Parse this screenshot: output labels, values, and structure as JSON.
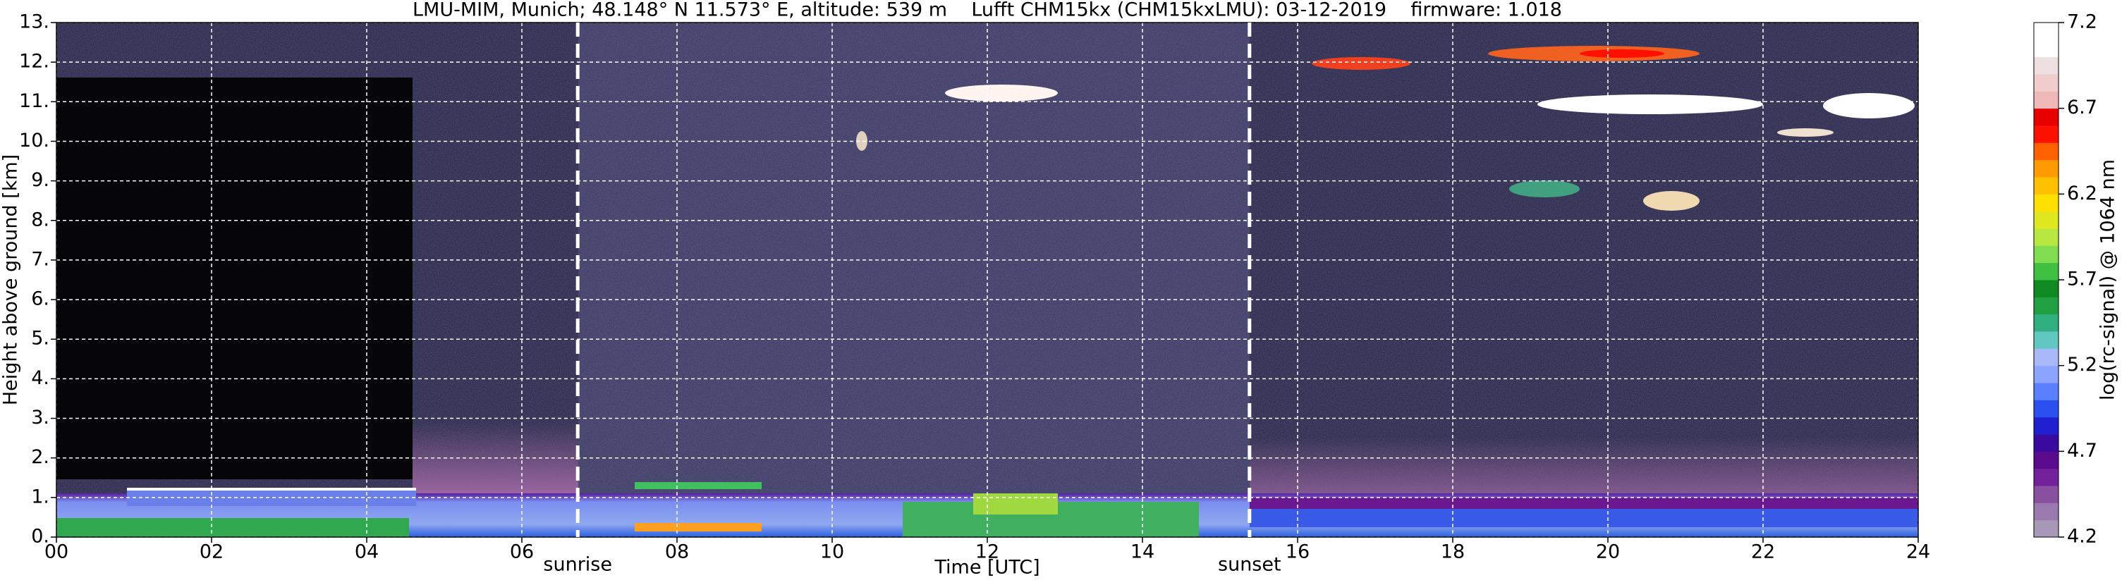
{
  "chart_data": {
    "type": "heatmap",
    "title": "LMU-MIM, Munich; 48.148° N 11.573° E, altitude: 539 m    Lufft CHM15kx (CHM15kxLMU): 03-12-2019    firmware: 1.018",
    "x_label": "Time [UTC]",
    "y_label": "Height above ground [km]",
    "xlim": [
      0,
      24
    ],
    "xticks": [
      {
        "value": 0,
        "label": "00"
      },
      {
        "value": 2,
        "label": "02"
      },
      {
        "value": 4,
        "label": "04"
      },
      {
        "value": 6,
        "label": "06"
      },
      {
        "value": 8,
        "label": "08"
      },
      {
        "value": 10,
        "label": "10"
      },
      {
        "value": 12,
        "label": "12"
      },
      {
        "value": 14,
        "label": "14"
      },
      {
        "value": 16,
        "label": "16"
      },
      {
        "value": 18,
        "label": "18"
      },
      {
        "value": 20,
        "label": "20"
      },
      {
        "value": 22,
        "label": "22"
      },
      {
        "value": 24,
        "label": "24"
      }
    ],
    "ylim": [
      0,
      13
    ],
    "yticks": [
      {
        "value": 0,
        "label": "0."
      },
      {
        "value": 1,
        "label": "1."
      },
      {
        "value": 2,
        "label": "2."
      },
      {
        "value": 3,
        "label": "3."
      },
      {
        "value": 4,
        "label": "4."
      },
      {
        "value": 5,
        "label": "5."
      },
      {
        "value": 6,
        "label": "6."
      },
      {
        "value": 7,
        "label": "7."
      },
      {
        "value": 8,
        "label": "8."
      },
      {
        "value": 9,
        "label": "9."
      },
      {
        "value": 10,
        "label": "10."
      },
      {
        "value": 11,
        "label": "11."
      },
      {
        "value": 12,
        "label": "12."
      },
      {
        "value": 13,
        "label": "13."
      }
    ],
    "grid": true,
    "annotations": [
      {
        "label": "sunrise",
        "x": 6.72
      },
      {
        "label": "sunset",
        "x": 15.38
      }
    ],
    "colorbar": {
      "label": "log(rc-signal) @ 1064 nm",
      "lim": [
        4.2,
        7.2
      ],
      "ticks": [
        4.2,
        4.7,
        5.2,
        5.7,
        6.2,
        6.7,
        7.2
      ],
      "colors": [
        "#a898b8",
        "#9a7aae",
        "#8a50a0",
        "#74209a",
        "#5a0a8c",
        "#3a0aa0",
        "#2020d0",
        "#2a50f0",
        "#5a80ff",
        "#8aa4ff",
        "#a8b8f8",
        "#60c8c0",
        "#30b080",
        "#20a040",
        "#108a20",
        "#40c040",
        "#80dc50",
        "#b8e840",
        "#e0e820",
        "#ffe000",
        "#ffc000",
        "#ff9a00",
        "#ff6000",
        "#ff1000",
        "#e80000",
        "#f0b8b8",
        "#f0cccc",
        "#eee0e0",
        "#ffffff",
        "#ffffff"
      ]
    }
  }
}
